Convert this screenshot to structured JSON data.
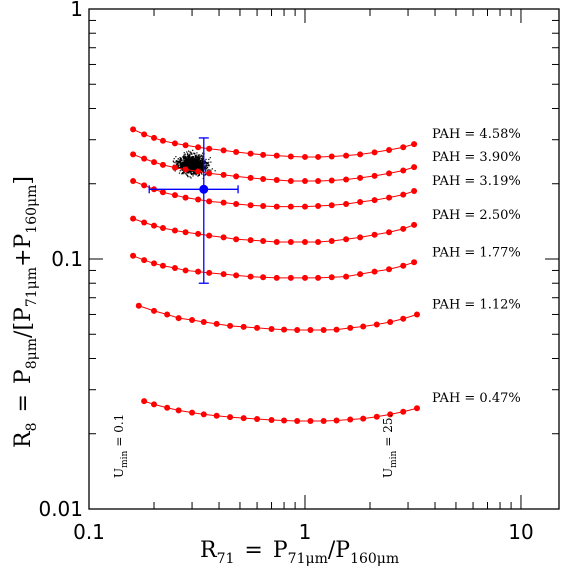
{
  "chart_data": {
    "type": "line",
    "xlabel": {
      "main": "R",
      "sub": "71",
      "eq": "=",
      "num_main": "P",
      "num_sub": "71μm",
      "den_main": "/P",
      "den_sub": "160μm"
    },
    "ylabel": {
      "main": "R",
      "sub": "8",
      "eq": "=",
      "num_main": "P",
      "num_sub": "8μm",
      "den_open": "/[P",
      "den_sub1": "71μm",
      "plus": "+P",
      "den_sub2": "160μm",
      "close": "]"
    },
    "x_scale": "log",
    "y_scale": "log",
    "xlim": [
      0.1,
      15
    ],
    "ylim": [
      0.01,
      1
    ],
    "x_tick_labels": [
      {
        "value": 0.1,
        "label": "0.1"
      },
      {
        "value": 1,
        "label": "1"
      },
      {
        "value": 10,
        "label": "10"
      }
    ],
    "y_tick_labels": [
      {
        "value": 0.01,
        "label": "0.01"
      },
      {
        "value": 0.1,
        "label": "0.1"
      },
      {
        "value": 1,
        "label": "1"
      }
    ],
    "grid": false,
    "series": [
      {
        "name": "PAH = 4.58%",
        "color": "#ff0000",
        "x": [
          0.16,
          0.18,
          0.2,
          0.22,
          0.25,
          0.28,
          0.32,
          0.36,
          0.42,
          0.48,
          0.56,
          0.64,
          0.74,
          0.86,
          1.0,
          1.15,
          1.33,
          1.55,
          1.8,
          2.1,
          2.45,
          2.85,
          3.2
        ],
        "y": [
          0.33,
          0.315,
          0.305,
          0.297,
          0.29,
          0.285,
          0.28,
          0.276,
          0.272,
          0.268,
          0.264,
          0.261,
          0.259,
          0.257,
          0.256,
          0.256,
          0.257,
          0.259,
          0.262,
          0.267,
          0.273,
          0.28,
          0.288
        ]
      },
      {
        "name": "PAH = 3.90%",
        "color": "#ff0000",
        "x": [
          0.16,
          0.18,
          0.2,
          0.22,
          0.25,
          0.28,
          0.32,
          0.36,
          0.42,
          0.48,
          0.56,
          0.64,
          0.74,
          0.86,
          1.0,
          1.15,
          1.33,
          1.55,
          1.8,
          2.1,
          2.45,
          2.85,
          3.2
        ],
        "y": [
          0.262,
          0.252,
          0.244,
          0.238,
          0.232,
          0.228,
          0.224,
          0.22,
          0.217,
          0.214,
          0.211,
          0.209,
          0.207,
          0.205,
          0.205,
          0.205,
          0.206,
          0.208,
          0.211,
          0.215,
          0.22,
          0.226,
          0.233
        ]
      },
      {
        "name": "PAH = 3.19%",
        "color": "#ff0000",
        "x": [
          0.16,
          0.18,
          0.2,
          0.22,
          0.25,
          0.28,
          0.32,
          0.36,
          0.42,
          0.48,
          0.56,
          0.64,
          0.74,
          0.86,
          1.0,
          1.15,
          1.33,
          1.55,
          1.8,
          2.1,
          2.45,
          2.85,
          3.2
        ],
        "y": [
          0.205,
          0.197,
          0.19,
          0.185,
          0.18,
          0.176,
          0.173,
          0.17,
          0.168,
          0.166,
          0.164,
          0.163,
          0.162,
          0.162,
          0.162,
          0.163,
          0.164,
          0.166,
          0.169,
          0.172,
          0.176,
          0.181,
          0.187
        ]
      },
      {
        "name": "PAH = 2.50%",
        "color": "#ff0000",
        "x": [
          0.16,
          0.18,
          0.2,
          0.22,
          0.25,
          0.28,
          0.32,
          0.36,
          0.42,
          0.48,
          0.56,
          0.64,
          0.74,
          0.86,
          1.0,
          1.15,
          1.33,
          1.55,
          1.8,
          2.1,
          2.45,
          2.85,
          3.2
        ],
        "y": [
          0.145,
          0.14,
          0.136,
          0.133,
          0.13,
          0.128,
          0.126,
          0.124,
          0.122,
          0.12,
          0.119,
          0.118,
          0.117,
          0.117,
          0.117,
          0.117,
          0.118,
          0.12,
          0.122,
          0.125,
          0.128,
          0.132,
          0.137
        ]
      },
      {
        "name": "PAH = 1.77%",
        "color": "#ff0000",
        "x": [
          0.16,
          0.18,
          0.2,
          0.22,
          0.25,
          0.28,
          0.32,
          0.36,
          0.42,
          0.48,
          0.56,
          0.64,
          0.74,
          0.86,
          1.0,
          1.15,
          1.33,
          1.55,
          1.8,
          2.1,
          2.45,
          2.85,
          3.2
        ],
        "y": [
          0.103,
          0.099,
          0.096,
          0.094,
          0.092,
          0.09,
          0.089,
          0.088,
          0.087,
          0.086,
          0.085,
          0.0845,
          0.084,
          0.084,
          0.084,
          0.084,
          0.0845,
          0.085,
          0.087,
          0.089,
          0.091,
          0.094,
          0.097
        ]
      },
      {
        "name": "PAH = 1.12%",
        "color": "#ff0000",
        "x": [
          0.17,
          0.2,
          0.23,
          0.26,
          0.3,
          0.34,
          0.39,
          0.45,
          0.52,
          0.6,
          0.7,
          0.8,
          0.92,
          1.06,
          1.22,
          1.4,
          1.62,
          1.86,
          2.15,
          2.48,
          2.85,
          3.3
        ],
        "y": [
          0.065,
          0.062,
          0.06,
          0.058,
          0.057,
          0.056,
          0.055,
          0.054,
          0.0535,
          0.053,
          0.0525,
          0.0522,
          0.052,
          0.052,
          0.052,
          0.0522,
          0.053,
          0.0537,
          0.0547,
          0.056,
          0.0577,
          0.06
        ]
      },
      {
        "name": "PAH = 0.47%",
        "color": "#ff0000",
        "x": [
          0.18,
          0.2,
          0.23,
          0.26,
          0.3,
          0.34,
          0.39,
          0.45,
          0.52,
          0.6,
          0.7,
          0.8,
          0.92,
          1.06,
          1.22,
          1.4,
          1.62,
          1.86,
          2.15,
          2.48,
          2.85,
          3.3
        ],
        "y": [
          0.027,
          0.0262,
          0.0254,
          0.0248,
          0.0243,
          0.0239,
          0.0236,
          0.0233,
          0.0231,
          0.0229,
          0.0227,
          0.0226,
          0.0225,
          0.0225,
          0.0225,
          0.0226,
          0.0228,
          0.023,
          0.0234,
          0.0239,
          0.0245,
          0.0253
        ]
      }
    ],
    "annotations": {
      "umin_low": {
        "main": "U",
        "sub": "min",
        "text": "= 0.1"
      },
      "umin_high": {
        "main": "U",
        "sub": "min",
        "text": "= 25."
      }
    },
    "mean_point": {
      "x": 0.34,
      "y": 0.19,
      "x_err": [
        0.19,
        0.49
      ],
      "y_err": [
        0.08,
        0.305
      ],
      "color": "#0000ff"
    },
    "scatter_cloud": {
      "color": "#000000",
      "x_range": [
        0.14,
        0.55
      ],
      "y_range": [
        0.16,
        0.42
      ],
      "center": [
        0.3,
        0.24
      ]
    }
  }
}
